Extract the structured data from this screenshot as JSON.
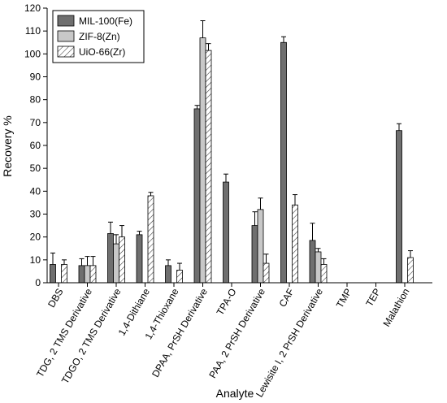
{
  "chart_data": {
    "type": "bar",
    "xlabel": "Analyte",
    "ylabel": "Recovery %",
    "ylim": [
      0,
      120
    ],
    "yticks": [
      0,
      10,
      20,
      30,
      40,
      50,
      60,
      70,
      80,
      90,
      100,
      110,
      120
    ],
    "grid": false,
    "legend_position": "top-left",
    "categories": [
      "DBS",
      "TDG, 2 TMS Derivative",
      "TDGO, 2 TMS Derivative",
      "1,4-Dithiane",
      "1,4-Thioxane",
      "DPAA, PrSH Derivative",
      "TPA-O",
      "PAA, 2 PrSH Derivative",
      "CAF",
      "Lewisite I, 2 PrSH Derivative",
      "TMP",
      "TEP",
      "Malathion"
    ],
    "series": [
      {
        "name": "MIL-100(Fe)",
        "color": "#6f6f6f",
        "pattern": "solid",
        "values": [
          8,
          7.5,
          21.5,
          21,
          7.5,
          76,
          44,
          25,
          105,
          18.5,
          null,
          null,
          66.5
        ],
        "errors": [
          5,
          3,
          5,
          1.5,
          2.5,
          1.5,
          3.5,
          6,
          2.5,
          7.5,
          null,
          null,
          3
        ]
      },
      {
        "name": "ZIF-8(Zn)",
        "color": "#c8c8c8",
        "pattern": "solid",
        "values": [
          null,
          7.5,
          17,
          null,
          null,
          107,
          null,
          32,
          null,
          13.5,
          null,
          null,
          null
        ],
        "errors": [
          null,
          4,
          4,
          null,
          null,
          7.5,
          null,
          5,
          null,
          1.5,
          null,
          null,
          null
        ]
      },
      {
        "name": "UiO-66(Zr)",
        "color": "#ffffff",
        "pattern": "hatched",
        "values": [
          8,
          7.5,
          20,
          38,
          5.5,
          101.5,
          null,
          8.5,
          34,
          8,
          null,
          null,
          11
        ],
        "errors": [
          2,
          4,
          5,
          1.5,
          3,
          3,
          null,
          4,
          4.5,
          2.5,
          null,
          null,
          3
        ]
      }
    ]
  }
}
